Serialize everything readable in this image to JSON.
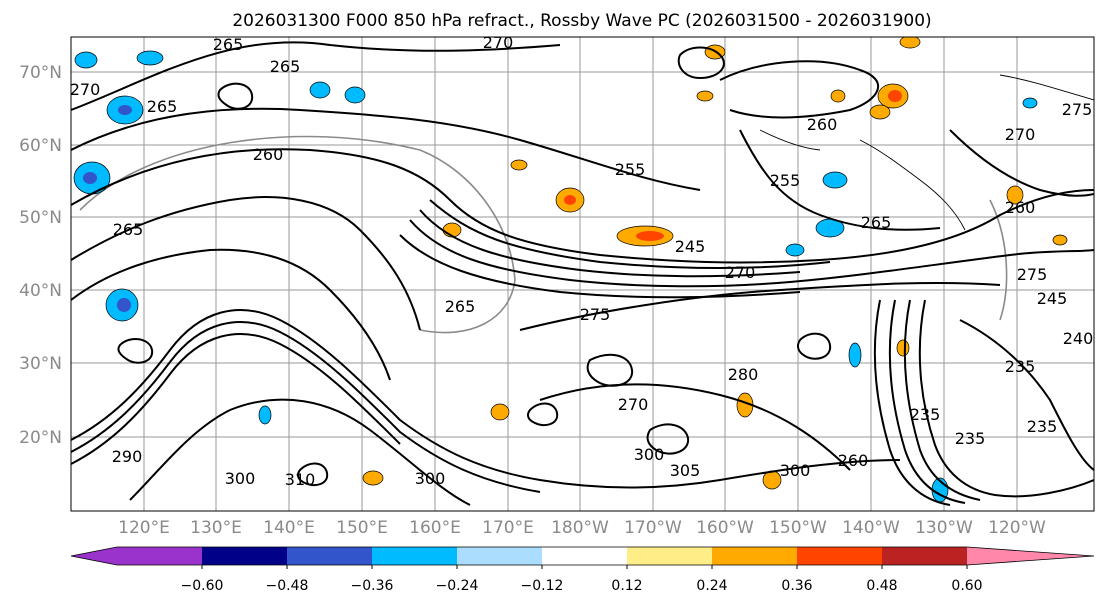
{
  "title": "2026031300 F000 850 hPa refract., Rossby Wave PC (2026031500 - 2026031900)",
  "map": {
    "lat_ticks": [
      "70°N",
      "60°N",
      "50°N",
      "40°N",
      "30°N",
      "20°N"
    ],
    "lon_ticks": [
      "120°E",
      "130°E",
      "140°E",
      "150°E",
      "160°E",
      "170°E",
      "180°W",
      "170°W",
      "160°W",
      "150°W",
      "140°W",
      "130°W",
      "120°W"
    ],
    "contour_labels": [
      "265",
      "270",
      "270",
      "265",
      "265",
      "260",
      "265",
      "255",
      "245",
      "270",
      "275",
      "265",
      "260",
      "255",
      "260",
      "265",
      "275",
      "270",
      "275",
      "280",
      "270",
      "300",
      "305",
      "300",
      "260",
      "235",
      "235",
      "235",
      "290",
      "300",
      "310",
      "300",
      "235",
      "240",
      "245"
    ],
    "gridline_color": "#9a9a9a",
    "contour_color": "#000000"
  },
  "colorbar": {
    "colors": [
      "#9933cc",
      "#000088",
      "#3355cc",
      "#00bbff",
      "#aaddff",
      "#ffffff",
      "#ffee88",
      "#ffaa00",
      "#ff4400",
      "#bb2222",
      "#ff88aa"
    ],
    "tick_labels": [
      "−0.60",
      "−0.48",
      "−0.36",
      "−0.24",
      "−0.12",
      "0.12",
      "0.24",
      "0.36",
      "0.48",
      "0.60"
    ]
  }
}
